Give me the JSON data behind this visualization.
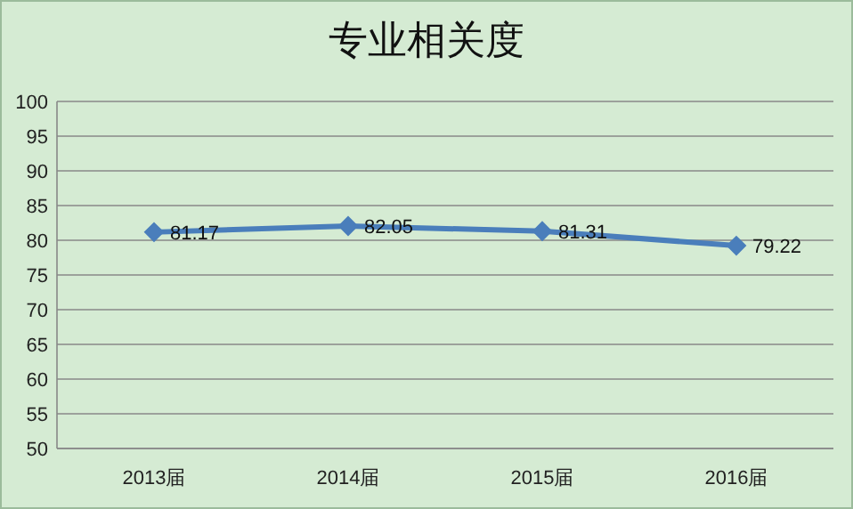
{
  "chart_data": {
    "type": "line",
    "title": "专业相关度",
    "categories": [
      "2013届",
      "2014届",
      "2015届",
      "2016届"
    ],
    "series": [
      {
        "color": "#4a7ebb",
        "values": [
          81.17,
          82.05,
          81.31,
          79.22
        ]
      }
    ],
    "ylim": [
      50,
      100
    ],
    "yticks": [
      50,
      55,
      60,
      65,
      70,
      75,
      80,
      85,
      90,
      95,
      100
    ],
    "grid": "y",
    "marker": "diamond",
    "line_style": "solid",
    "data_labels": true
  }
}
